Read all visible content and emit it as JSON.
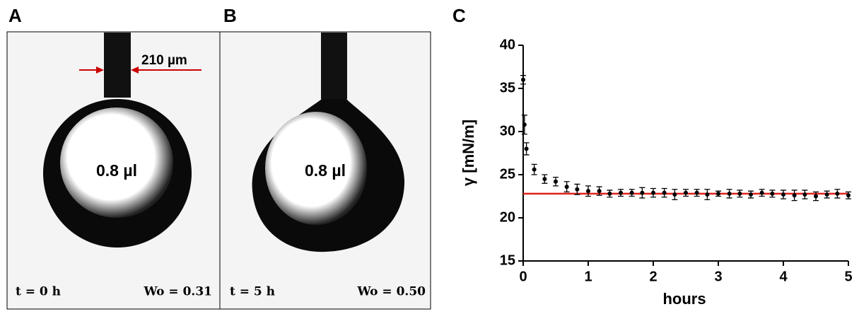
{
  "panels": {
    "a": {
      "label": "A",
      "dimension": "210 µm",
      "volume": "0.8 µl",
      "time": "t = 0 h",
      "wo": "Wo = 0.31"
    },
    "b": {
      "label": "B",
      "volume": "0.8 µl",
      "time": "t = 5 h",
      "wo": "Wo = 0.50"
    }
  },
  "chart_data": {
    "type": "errorbar",
    "panel_label": "C",
    "y_label": "γ [mN/m]",
    "x_label": "hours",
    "x": [
      0,
      0.02,
      0.05,
      0.17,
      0.33,
      0.5,
      0.67,
      0.83,
      1,
      1.17,
      1.33,
      1.5,
      1.67,
      1.83,
      2,
      2.17,
      2.33,
      2.5,
      2.67,
      2.83,
      3,
      3.17,
      3.33,
      3.5,
      3.67,
      3.83,
      4,
      4.17,
      4.33,
      4.5,
      4.67,
      4.83,
      5
    ],
    "values": [
      36.0,
      30.8,
      28.0,
      25.6,
      24.5,
      24.2,
      23.6,
      23.3,
      23.1,
      23.1,
      22.8,
      22.9,
      22.9,
      22.9,
      22.9,
      22.9,
      22.7,
      22.9,
      22.9,
      22.7,
      22.8,
      22.8,
      22.8,
      22.7,
      22.9,
      22.8,
      22.7,
      22.6,
      22.7,
      22.5,
      22.7,
      22.8,
      22.6
    ],
    "errors": [
      0.5,
      1.1,
      0.7,
      0.6,
      0.5,
      0.5,
      0.6,
      0.6,
      0.6,
      0.5,
      0.4,
      0.4,
      0.4,
      0.6,
      0.5,
      0.5,
      0.6,
      0.4,
      0.4,
      0.6,
      0.3,
      0.5,
      0.4,
      0.4,
      0.4,
      0.4,
      0.5,
      0.6,
      0.5,
      0.5,
      0.4,
      0.5,
      0.4
    ],
    "color": "#000000",
    "fit": {
      "value": 22.8,
      "color": "#e0201a"
    },
    "xlim": [
      0,
      5
    ],
    "xticks": [
      0,
      1,
      2,
      3,
      4,
      5
    ],
    "ylim": [
      15,
      40
    ],
    "yticks": [
      15,
      20,
      25,
      30,
      35,
      40
    ]
  }
}
